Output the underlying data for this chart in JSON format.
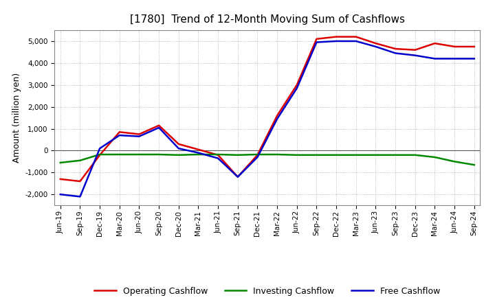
{
  "title": "[1780]  Trend of 12-Month Moving Sum of Cashflows",
  "ylabel": "Amount (million yen)",
  "xlabels": [
    "Jun-19",
    "Sep-19",
    "Dec-19",
    "Mar-20",
    "Jun-20",
    "Sep-20",
    "Dec-20",
    "Mar-21",
    "Jun-21",
    "Sep-21",
    "Dec-21",
    "Mar-22",
    "Jun-22",
    "Sep-22",
    "Dec-22",
    "Mar-23",
    "Jun-23",
    "Sep-23",
    "Dec-23",
    "Mar-24",
    "Jun-24",
    "Sep-24"
  ],
  "operating": [
    -1300,
    -1400,
    -200,
    850,
    750,
    1150,
    300,
    50,
    -200,
    -1200,
    -200,
    1600,
    3000,
    5100,
    5200,
    5200,
    4900,
    4650,
    4600,
    4900,
    4750,
    4750
  ],
  "investing": [
    -550,
    -450,
    -175,
    -175,
    -175,
    -175,
    -200,
    -175,
    -175,
    -200,
    -175,
    -175,
    -200,
    -200,
    -200,
    -200,
    -200,
    -200,
    -200,
    -300,
    -500,
    -650
  ],
  "free": [
    -2000,
    -2100,
    100,
    700,
    650,
    1050,
    100,
    -100,
    -350,
    -1200,
    -300,
    1450,
    2850,
    4950,
    5000,
    5000,
    4750,
    4450,
    4350,
    4200,
    4200,
    4200
  ],
  "ylim": [
    -2500,
    5500
  ],
  "yticks": [
    -2000,
    -1000,
    0,
    1000,
    2000,
    3000,
    4000,
    5000
  ],
  "operating_color": "#dd0000",
  "investing_color": "#008800",
  "free_color": "#0000cc",
  "bg_color": "#ffffff",
  "plot_bg_color": "#ffffff",
  "grid_color": "#aaaaaa",
  "linewidth": 1.8,
  "title_fontsize": 11,
  "legend_fontsize": 9,
  "tick_fontsize": 7.5
}
